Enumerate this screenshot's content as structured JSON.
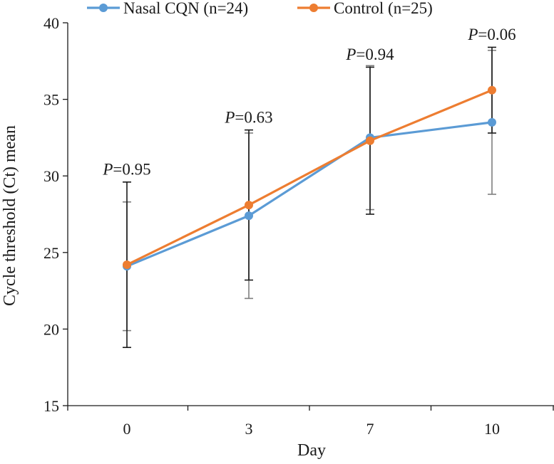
{
  "colors": {
    "nasal": "#5B9BD5",
    "control": "#ED7D31",
    "axis": "#1a1a1a",
    "errbar_nasal": "#7f7f7f",
    "errbar_control": "#1a1a1a"
  },
  "chart_data": {
    "type": "line",
    "title": "",
    "xlabel": "Day",
    "ylabel": "Cycle threshold (Ct) mean",
    "categories": [
      "0",
      "3",
      "7",
      "10"
    ],
    "ylim": [
      15,
      40
    ],
    "yticks": [
      15,
      20,
      25,
      30,
      35,
      40
    ],
    "grid": false,
    "legend_position": "top",
    "series": [
      {
        "name": "Nasal CQN (n=24)",
        "color_key": "nasal",
        "values": [
          24.1,
          27.4,
          32.5,
          33.5
        ],
        "err_low": [
          19.9,
          22.0,
          27.8,
          28.8
        ],
        "err_high": [
          28.3,
          32.8,
          37.2,
          38.2
        ]
      },
      {
        "name": "Control (n=25)",
        "color_key": "control",
        "values": [
          24.2,
          28.1,
          32.3,
          35.6
        ],
        "err_low": [
          18.8,
          23.2,
          27.5,
          32.8
        ],
        "err_high": [
          29.6,
          33.0,
          37.1,
          38.4
        ]
      }
    ],
    "annotations": [
      {
        "italic": "P",
        "text": "=0.95",
        "category_index": 0,
        "y": 29.8
      },
      {
        "italic": "P",
        "text": "=0.63",
        "category_index": 1,
        "y": 33.2
      },
      {
        "italic": "P",
        "text": "=0.94",
        "category_index": 2,
        "y": 37.3
      },
      {
        "italic": "P",
        "text": "=0.06",
        "category_index": 3,
        "y": 38.6
      }
    ]
  }
}
